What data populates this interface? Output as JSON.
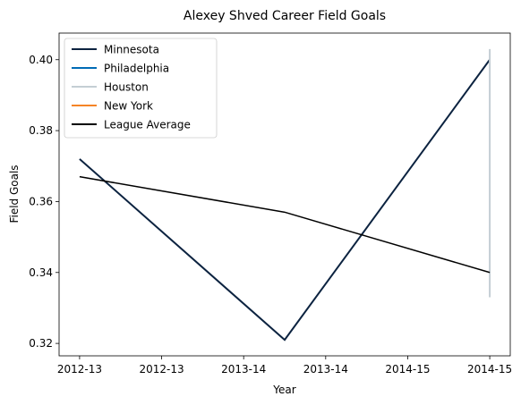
{
  "chart_data": {
    "type": "line",
    "title": "Alexey Shved Career Field Goals",
    "xlabel": "Year",
    "ylabel": "Field Goals",
    "x_tick_labels": [
      "2012-13",
      "2012-13",
      "2013-14",
      "2013-14",
      "2014-15",
      "2014-15"
    ],
    "x_positions": [
      0,
      1,
      2,
      3,
      4,
      5
    ],
    "xlim": [
      -0.25,
      5.25
    ],
    "ylim": [
      0.3165,
      0.4075
    ],
    "y_ticks": [
      0.32,
      0.34,
      0.36,
      0.38,
      0.4
    ],
    "y_tick_labels": [
      "0.32",
      "0.34",
      "0.36",
      "0.38",
      "0.40"
    ],
    "grid": false,
    "legend_position": "top-left",
    "series": [
      {
        "name": "Minnesota",
        "color": "#0c2340",
        "points": [
          [
            0,
            0.372
          ],
          [
            2.5,
            0.321
          ],
          [
            5,
            0.4
          ]
        ]
      },
      {
        "name": "Philadelphia",
        "color": "#006bb6",
        "points": []
      },
      {
        "name": "Houston",
        "color": "#c4ced4",
        "points": [
          [
            5,
            0.333
          ],
          [
            5,
            0.403
          ]
        ]
      },
      {
        "name": "New York",
        "color": "#f58426",
        "points": []
      },
      {
        "name": "League Average",
        "color": "#000000",
        "points": [
          [
            0,
            0.367
          ],
          [
            2.5,
            0.357
          ],
          [
            5,
            0.34
          ]
        ]
      }
    ]
  }
}
